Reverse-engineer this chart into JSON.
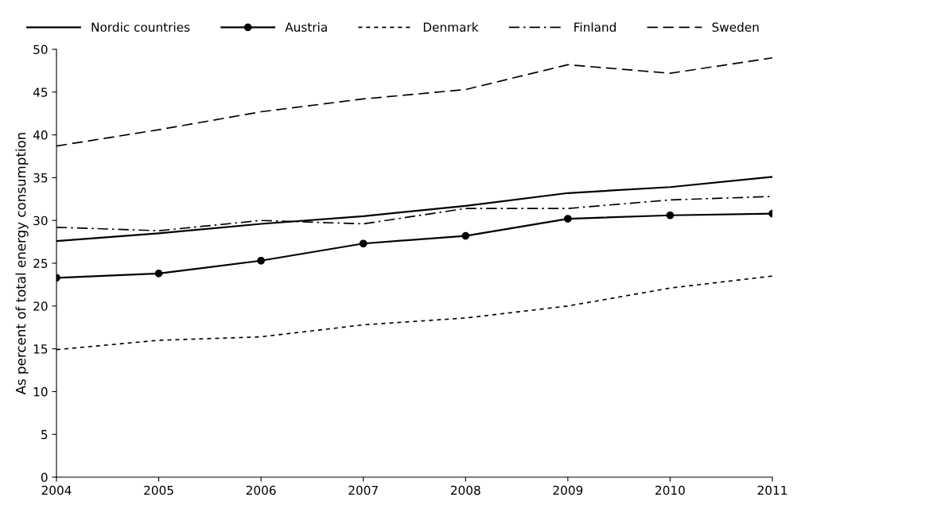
{
  "chart_data": {
    "type": "line",
    "ylabel": "As percent of total energy consumption",
    "x": [
      2004,
      2005,
      2006,
      2007,
      2008,
      2009,
      2010,
      2011
    ],
    "xlim": [
      2004,
      2011
    ],
    "xticks": [
      2004,
      2005,
      2006,
      2007,
      2008,
      2009,
      2010,
      2011
    ],
    "ylim": [
      0,
      50
    ],
    "yticks": [
      0,
      5,
      10,
      15,
      20,
      25,
      30,
      35,
      40,
      45,
      50
    ],
    "grid": false,
    "legend": "top",
    "series": [
      {
        "name": "Nordic countries",
        "color": "#000000",
        "line_style": "solid",
        "marker": "none",
        "values": [
          27.6,
          28.5,
          29.6,
          30.5,
          31.7,
          33.2,
          33.9,
          35.1
        ]
      },
      {
        "name": "Austria",
        "color": "#000000",
        "line_style": "solid",
        "marker": "circle",
        "values": [
          23.3,
          23.8,
          25.3,
          27.3,
          28.2,
          30.2,
          30.6,
          30.8
        ]
      },
      {
        "name": "Denmark",
        "color": "#000000",
        "line_style": "dotted",
        "marker": "none",
        "values": [
          14.9,
          16.0,
          16.4,
          17.8,
          18.6,
          20.0,
          22.1,
          23.5
        ]
      },
      {
        "name": "Finland",
        "color": "#000000",
        "line_style": "dashdot",
        "marker": "none",
        "values": [
          29.2,
          28.8,
          30.0,
          29.6,
          31.4,
          31.4,
          32.4,
          32.8
        ]
      },
      {
        "name": "Sweden",
        "color": "#000000",
        "line_style": "dashed",
        "marker": "none",
        "values": [
          38.7,
          40.6,
          42.7,
          44.2,
          45.3,
          48.2,
          47.2,
          49.0
        ]
      }
    ]
  }
}
